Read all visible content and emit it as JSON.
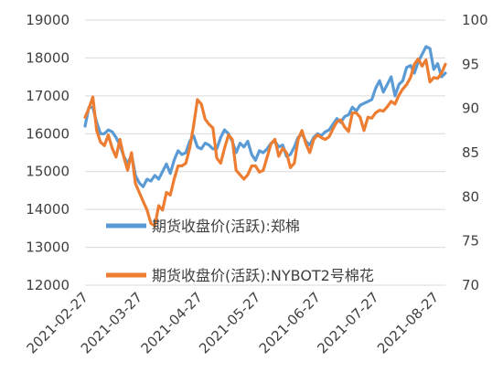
{
  "chart_data": {
    "type": "line",
    "x": [
      "2021-02-26",
      "2021-02-28",
      "2021-03-02",
      "2021-03-04",
      "2021-03-06",
      "2021-03-08",
      "2021-03-10",
      "2021-03-12",
      "2021-03-14",
      "2021-03-16",
      "2021-03-18",
      "2021-03-20",
      "2021-03-22",
      "2021-03-24",
      "2021-03-26",
      "2021-03-28",
      "2021-03-30",
      "2021-04-01",
      "2021-04-03",
      "2021-04-05",
      "2021-04-07",
      "2021-04-09",
      "2021-04-11",
      "2021-04-13",
      "2021-04-15",
      "2021-04-17",
      "2021-04-19",
      "2021-04-21",
      "2021-04-23",
      "2021-04-25",
      "2021-04-27",
      "2021-04-29",
      "2021-05-01",
      "2021-05-03",
      "2021-05-05",
      "2021-05-07",
      "2021-05-09",
      "2021-05-11",
      "2021-05-13",
      "2021-05-15",
      "2021-05-17",
      "2021-05-19",
      "2021-05-21",
      "2021-05-23",
      "2021-05-25",
      "2021-05-27",
      "2021-05-29",
      "2021-05-31",
      "2021-06-02",
      "2021-06-04",
      "2021-06-06",
      "2021-06-08",
      "2021-06-10",
      "2021-06-12",
      "2021-06-14",
      "2021-06-16",
      "2021-06-18",
      "2021-06-20",
      "2021-06-22",
      "2021-06-24",
      "2021-06-26",
      "2021-06-28",
      "2021-06-30",
      "2021-07-02",
      "2021-07-04",
      "2021-07-06",
      "2021-07-08",
      "2021-07-10",
      "2021-07-12",
      "2021-07-14",
      "2021-07-16",
      "2021-07-18",
      "2021-07-20",
      "2021-07-22",
      "2021-07-24",
      "2021-07-26",
      "2021-07-28",
      "2021-07-30",
      "2021-08-01",
      "2021-08-03",
      "2021-08-05",
      "2021-08-07",
      "2021-08-09",
      "2021-08-11",
      "2021-08-13",
      "2021-08-15",
      "2021-08-17",
      "2021-08-19",
      "2021-08-21",
      "2021-08-23",
      "2021-08-25",
      "2021-08-27",
      "2021-08-29",
      "2021-08-31"
    ],
    "x_ticks": [
      "2021-02-27",
      "2021-03-27",
      "2021-04-27",
      "2021-05-27",
      "2021-06-27",
      "2021-07-27",
      "2021-08-27"
    ],
    "y_left": {
      "ticks": [
        12000,
        13000,
        14000,
        15000,
        16000,
        17000,
        18000,
        19000
      ],
      "ylim": [
        12000,
        19000
      ]
    },
    "y_right": {
      "ticks": [
        70,
        75,
        80,
        85,
        90,
        95,
        100
      ],
      "ylim": [
        70,
        100
      ]
    },
    "series": [
      {
        "name": "期货收盘价(活跃):郑棉",
        "axis": "left",
        "color": "#5b9bd5",
        "values": [
          16200,
          16700,
          16700,
          16300,
          16000,
          16000,
          16100,
          16050,
          15900,
          15700,
          15400,
          15200,
          15450,
          14900,
          14700,
          14600,
          14800,
          14750,
          14900,
          14800,
          15000,
          15200,
          14950,
          15300,
          15550,
          15450,
          15500,
          15800,
          15950,
          15650,
          15600,
          15750,
          15700,
          15600,
          15600,
          15900,
          16100,
          16000,
          15800,
          15500,
          15750,
          15650,
          15800,
          15450,
          15300,
          15550,
          15500,
          15600,
          15750,
          15800,
          15650,
          15700,
          15400,
          15450,
          15650,
          15900,
          16000,
          15800,
          15700,
          15900,
          16000,
          15950,
          16050,
          16100,
          16250,
          16400,
          16300,
          16450,
          16500,
          16700,
          16600,
          16750,
          16800,
          16850,
          16900,
          17200,
          17400,
          17100,
          17300,
          17500,
          17000,
          17300,
          17400,
          17750,
          17800,
          17600,
          17900,
          18100,
          18300,
          18250,
          17700,
          17850,
          17500,
          17600
        ]
      },
      {
        "name": "期货收盘价(活跃):NYBOT2号棉花",
        "axis": "right",
        "color": "#ed7d31",
        "values": [
          89,
          90,
          91.3,
          87.5,
          86.2,
          85.8,
          87,
          85.5,
          84.5,
          86.5,
          84.5,
          83,
          85,
          81.5,
          80.5,
          79.5,
          78.5,
          77,
          76.7,
          79,
          78.5,
          80.5,
          80.2,
          82,
          83.5,
          83.5,
          83.8,
          85.5,
          88,
          91,
          90.5,
          88.8,
          88.2,
          87.8,
          84.4,
          83.8,
          85.5,
          87,
          86.5,
          83,
          82.5,
          82,
          82.5,
          83.5,
          83.5,
          82.8,
          83,
          84.5,
          86,
          86.5,
          84.6,
          85.5,
          85,
          83.3,
          83.8,
          86.5,
          87.5,
          86,
          85,
          86.5,
          87,
          86.7,
          86.5,
          86.8,
          87.7,
          88.5,
          88.7,
          87.9,
          87.4,
          89.5,
          89.5,
          89,
          87.5,
          89,
          88.9,
          89.5,
          89.8,
          89.7,
          90.2,
          90.8,
          90.5,
          91.5,
          92.2,
          92.7,
          93.5,
          95,
          95.6,
          94.8,
          95.5,
          93,
          93.5,
          93.4,
          94,
          95
        ]
      }
    ]
  }
}
